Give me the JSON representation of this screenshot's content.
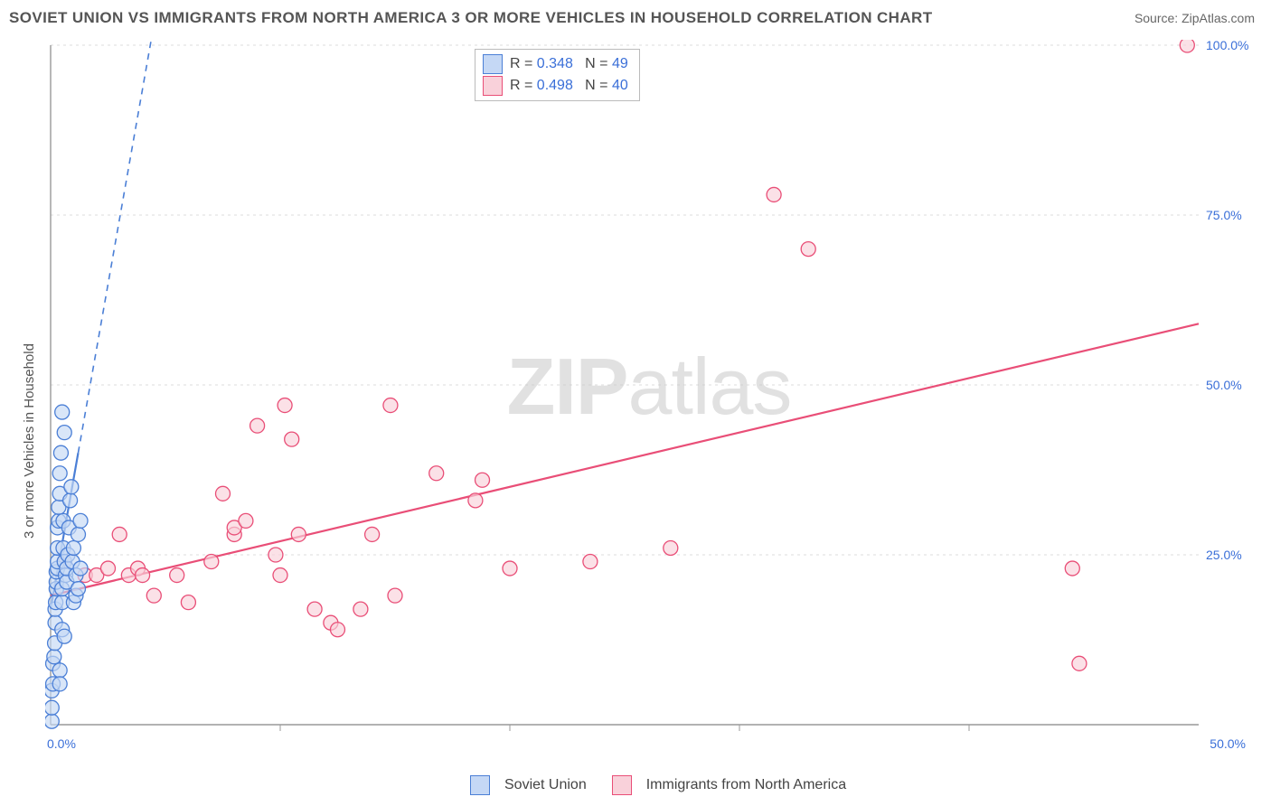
{
  "title": "SOVIET UNION VS IMMIGRANTS FROM NORTH AMERICA 3 OR MORE VEHICLES IN HOUSEHOLD CORRELATION CHART",
  "source": "Source: ZipAtlas.com",
  "y_axis_label": "3 or more Vehicles in Household",
  "watermark": {
    "bold": "ZIP",
    "rest": "atlas"
  },
  "chart": {
    "type": "scatter",
    "xlim": [
      0,
      50
    ],
    "ylim": [
      0,
      100
    ],
    "x_ticks": [
      0,
      10,
      20,
      30,
      40,
      50
    ],
    "y_ticks": [
      25,
      50,
      75,
      100
    ],
    "x_tick_labels": {
      "0": "0.0%",
      "50": "50.0%"
    },
    "y_tick_labels": {
      "25": "25.0%",
      "50": "50.0%",
      "75": "75.0%",
      "100": "100.0%"
    },
    "background": "#ffffff",
    "grid_color": "#dcdcdc",
    "axis_color": "#999999",
    "tick_label_color": "#3a6fd8",
    "marker_radius": 8,
    "marker_stroke_width": 1.3,
    "series": [
      {
        "id": "soviet",
        "label": "Soviet Union",
        "R": 0.348,
        "N": 49,
        "fill": "#c5d8f5",
        "stroke": "#4b7fd6",
        "trend": {
          "x1": 0,
          "y1": 17,
          "x2": 1.2,
          "y2": 40,
          "solid_to_x": 1.2,
          "dash_to": {
            "x": 8,
            "y": 170
          }
        },
        "points": [
          [
            0.05,
            0.5
          ],
          [
            0.05,
            5
          ],
          [
            0.1,
            6
          ],
          [
            0.1,
            9
          ],
          [
            0.15,
            10
          ],
          [
            0.18,
            12
          ],
          [
            0.2,
            15
          ],
          [
            0.2,
            17
          ],
          [
            0.22,
            18
          ],
          [
            0.25,
            20
          ],
          [
            0.25,
            21
          ],
          [
            0.25,
            22.5
          ],
          [
            0.3,
            23
          ],
          [
            0.3,
            24
          ],
          [
            0.3,
            26
          ],
          [
            0.3,
            29
          ],
          [
            0.35,
            30
          ],
          [
            0.35,
            32
          ],
          [
            0.4,
            34
          ],
          [
            0.4,
            37
          ],
          [
            0.45,
            40
          ],
          [
            0.5,
            46
          ],
          [
            0.6,
            43
          ],
          [
            0.5,
            18
          ],
          [
            0.5,
            20
          ],
          [
            0.5,
            14
          ],
          [
            0.6,
            13
          ],
          [
            0.4,
            8
          ],
          [
            0.4,
            6
          ],
          [
            0.55,
            30
          ],
          [
            0.55,
            26
          ],
          [
            0.6,
            24
          ],
          [
            0.65,
            22
          ],
          [
            0.7,
            21
          ],
          [
            0.7,
            23
          ],
          [
            0.75,
            25
          ],
          [
            0.8,
            29
          ],
          [
            0.85,
            33
          ],
          [
            0.9,
            35
          ],
          [
            0.95,
            24
          ],
          [
            1.0,
            26
          ],
          [
            1.0,
            18
          ],
          [
            1.1,
            22
          ],
          [
            1.1,
            19
          ],
          [
            1.2,
            20
          ],
          [
            1.2,
            28
          ],
          [
            1.3,
            30
          ],
          [
            1.3,
            23
          ],
          [
            0.05,
            2.5
          ]
        ]
      },
      {
        "id": "north_america",
        "label": "Immigrants from North America",
        "R": 0.498,
        "N": 40,
        "fill": "#f9d1da",
        "stroke": "#e94e77",
        "trend": {
          "x1": 0,
          "y1": 19,
          "x2": 50,
          "y2": 59,
          "solid_to_x": 50
        },
        "points": [
          [
            0.6,
            24
          ],
          [
            1.5,
            22
          ],
          [
            2.0,
            22
          ],
          [
            2.5,
            23
          ],
          [
            3.0,
            28
          ],
          [
            3.4,
            22
          ],
          [
            3.8,
            23
          ],
          [
            4.0,
            22
          ],
          [
            4.5,
            19
          ],
          [
            5.5,
            22
          ],
          [
            6.0,
            18
          ],
          [
            7.0,
            24
          ],
          [
            7.5,
            34
          ],
          [
            8.0,
            28
          ],
          [
            8.0,
            29
          ],
          [
            8.5,
            30
          ],
          [
            9.0,
            44
          ],
          [
            9.8,
            25
          ],
          [
            10.0,
            22
          ],
          [
            10.2,
            47
          ],
          [
            10.5,
            42
          ],
          [
            10.8,
            28
          ],
          [
            11.5,
            17
          ],
          [
            12.2,
            15
          ],
          [
            12.5,
            14
          ],
          [
            13.5,
            17
          ],
          [
            14.0,
            28
          ],
          [
            14.8,
            47
          ],
          [
            15.0,
            19
          ],
          [
            16.8,
            37
          ],
          [
            18.5,
            33
          ],
          [
            18.8,
            36
          ],
          [
            20.0,
            23
          ],
          [
            23.5,
            24
          ],
          [
            27.0,
            26
          ],
          [
            31.5,
            78
          ],
          [
            33.0,
            70
          ],
          [
            44.5,
            23
          ],
          [
            44.8,
            9
          ],
          [
            49.5,
            100
          ]
        ]
      }
    ]
  },
  "top_legend": {
    "R_label": "R = ",
    "N_label": "   N = "
  },
  "bottom_legend": {
    "items": [
      "Soviet Union",
      "Immigrants from North America"
    ]
  }
}
